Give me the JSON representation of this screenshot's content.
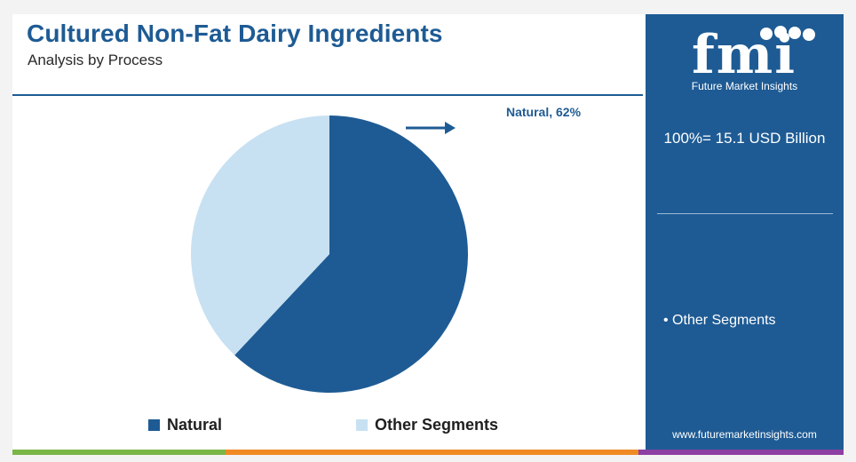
{
  "header": {
    "title": "Cultured Non-Fat Dairy Ingredients",
    "subtitle": "Analysis by Process"
  },
  "chart_data": {
    "type": "pie",
    "title": "Cultured Non-Fat Dairy Ingredients",
    "subtitle": "Analysis by Process",
    "categories": [
      "Natural",
      "Other Segments"
    ],
    "values": [
      62,
      38
    ],
    "unit": "%",
    "colors": [
      "#1e5b94",
      "#c7e1f2"
    ],
    "legend_position": "bottom",
    "annotation": "Natural, 62%"
  },
  "legend": {
    "items": [
      {
        "label": "Natural",
        "color": "#1e5b94"
      },
      {
        "label": "Other Segments",
        "color": "#c7e1f2"
      }
    ]
  },
  "sidebar": {
    "logo_text": "fmi",
    "logo_subtitle": "Future Market Insights",
    "total": "100%= 15.1 USD Billion",
    "segment_note": "• Other Segments",
    "website": "www.futuremarketinsights.com",
    "background": "#1e5b94"
  },
  "bottom_bar_colors": [
    "#7ab648",
    "#f08a24",
    "#8e3fa3"
  ]
}
